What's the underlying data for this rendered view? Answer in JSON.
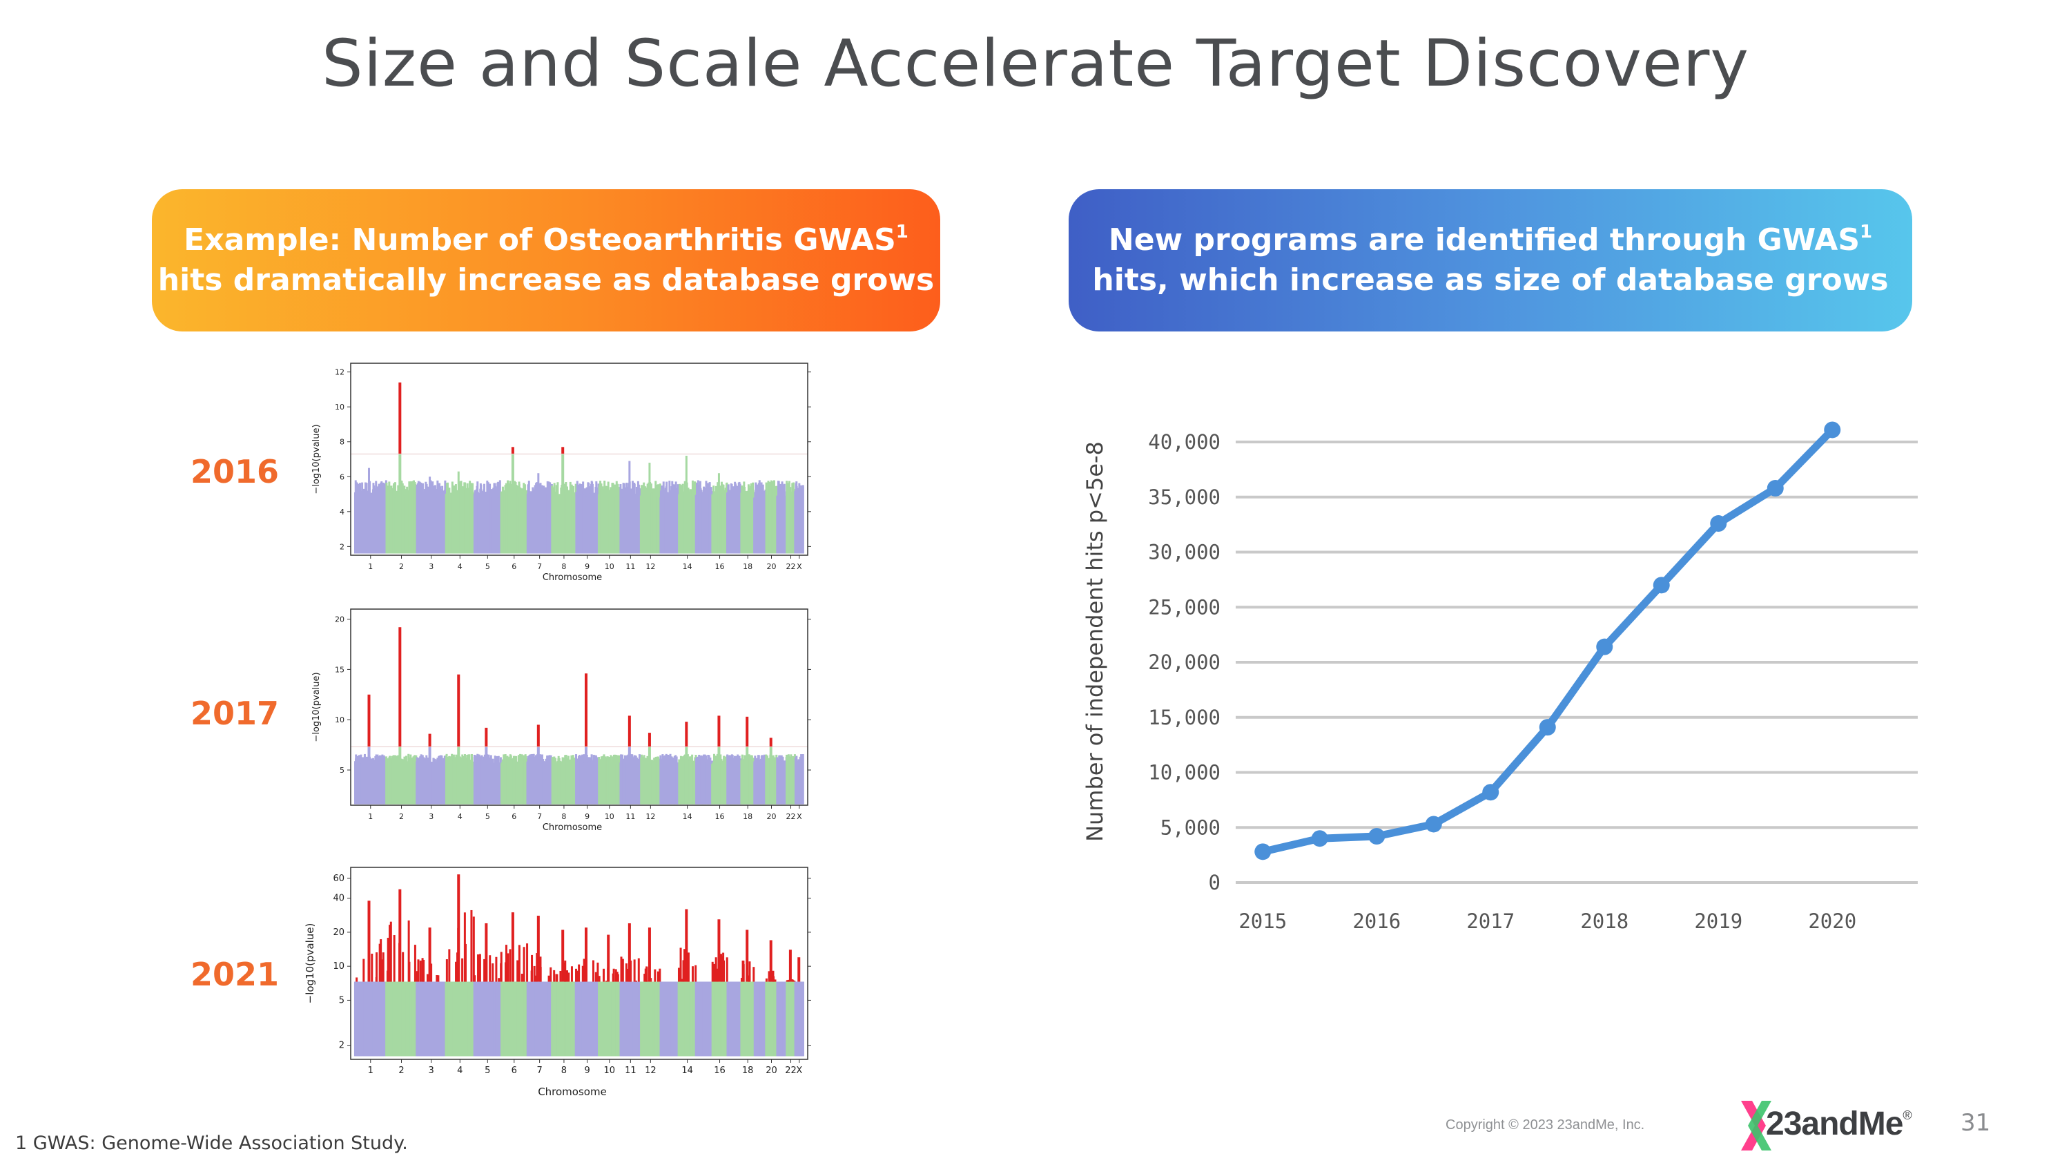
{
  "title": "Size and Scale Accelerate Target Discovery",
  "banners": {
    "left": {
      "line1": "Example: Number of Osteoarthritis GWAS",
      "sup1": "1",
      "line2": "hits dramatically increase as database grows"
    },
    "right": {
      "line1": "New programs are identified through GWAS",
      "sup1": "1",
      "line2": "hits, which increase as size of database grows"
    }
  },
  "chart_data": [
    {
      "type": "scatter",
      "label": "2016",
      "xlabel": "Chromosome",
      "ylabel": "−log10(pvalue)",
      "yticks": [
        2,
        4,
        6,
        8,
        10,
        12
      ],
      "ylim": [
        1.5,
        12.5
      ],
      "threshold": 7.3,
      "xticks": [
        "1",
        "2",
        "3",
        "4",
        "5",
        "6",
        "7",
        "8",
        "9",
        "10",
        "11",
        "12",
        "14",
        "16",
        "18",
        "20",
        "22",
        "X"
      ],
      "chromosomes": 23,
      "peaks": [
        {
          "chrom": 1,
          "value": 6.5
        },
        {
          "chrom": 2,
          "value": 11.4
        },
        {
          "chrom": 3,
          "value": 6.0
        },
        {
          "chrom": 4,
          "value": 6.3
        },
        {
          "chrom": 6,
          "value": 7.7
        },
        {
          "chrom": 7,
          "value": 6.2
        },
        {
          "chrom": 8,
          "value": 7.7
        },
        {
          "chrom": 11,
          "value": 6.9
        },
        {
          "chrom": 12,
          "value": 6.8
        },
        {
          "chrom": 14,
          "value": 7.2
        },
        {
          "chrom": 16,
          "value": 6.2
        },
        {
          "chrom": 19,
          "value": 5.8
        }
      ]
    },
    {
      "type": "scatter",
      "label": "2017",
      "xlabel": "Chromosome",
      "ylabel": "−log10(pvalue)",
      "yticks": [
        5,
        10,
        15,
        20
      ],
      "ylim": [
        1.5,
        21
      ],
      "threshold": 7.3,
      "xticks": [
        "1",
        "2",
        "3",
        "4",
        "5",
        "6",
        "7",
        "8",
        "9",
        "10",
        "11",
        "12",
        "14",
        "16",
        "18",
        "20",
        "22",
        "X"
      ],
      "chromosomes": 23,
      "peaks": [
        {
          "chrom": 1,
          "value": 12.5
        },
        {
          "chrom": 2,
          "value": 19.2
        },
        {
          "chrom": 3,
          "value": 8.6
        },
        {
          "chrom": 4,
          "value": 14.5
        },
        {
          "chrom": 5,
          "value": 9.2
        },
        {
          "chrom": 7,
          "value": 9.5
        },
        {
          "chrom": 9,
          "value": 14.6
        },
        {
          "chrom": 11,
          "value": 10.4
        },
        {
          "chrom": 12,
          "value": 8.7
        },
        {
          "chrom": 14,
          "value": 9.8
        },
        {
          "chrom": 16,
          "value": 10.4
        },
        {
          "chrom": 18,
          "value": 10.3
        },
        {
          "chrom": 20,
          "value": 8.2
        }
      ]
    },
    {
      "type": "scatter",
      "label": "2021",
      "xlabel": "Chromosome",
      "ylabel": "−log10(pvalue)",
      "yticks": [
        2,
        5,
        10,
        20,
        40,
        60
      ],
      "ylim": [
        1.5,
        75
      ],
      "threshold": 7.3,
      "xticks": [
        "1",
        "2",
        "3",
        "4",
        "5",
        "6",
        "7",
        "8",
        "9",
        "10",
        "11",
        "12",
        "14",
        "16",
        "18",
        "20",
        "22",
        "X"
      ],
      "chromosomes": 23,
      "peaks": [
        {
          "chrom": 1,
          "value": 38
        },
        {
          "chrom": 2,
          "value": 48
        },
        {
          "chrom": 3,
          "value": 22
        },
        {
          "chrom": 4,
          "value": 65
        },
        {
          "chrom": 5,
          "value": 24
        },
        {
          "chrom": 6,
          "value": 30
        },
        {
          "chrom": 7,
          "value": 28
        },
        {
          "chrom": 8,
          "value": 21
        },
        {
          "chrom": 9,
          "value": 22
        },
        {
          "chrom": 10,
          "value": 19
        },
        {
          "chrom": 11,
          "value": 24
        },
        {
          "chrom": 12,
          "value": 22
        },
        {
          "chrom": 14,
          "value": 32
        },
        {
          "chrom": 16,
          "value": 26
        },
        {
          "chrom": 18,
          "value": 21
        },
        {
          "chrom": 20,
          "value": 17
        },
        {
          "chrom": 22,
          "value": 14
        },
        {
          "chrom": 23,
          "value": 12
        }
      ]
    },
    {
      "type": "line",
      "x": [
        "2015",
        "2015.5",
        "2016",
        "2016.5",
        "2017",
        "2017.5",
        "2018",
        "2018.5",
        "2019",
        "2019.5",
        "2020",
        "2020.5"
      ],
      "values": [
        2800,
        4000,
        4200,
        5300,
        8200,
        14100,
        21400,
        27000,
        32600,
        35800,
        41100,
        null
      ],
      "xticks": [
        "2015",
        "2016",
        "2017",
        "2018",
        "2019",
        "2020"
      ],
      "yticks": [
        "0",
        "5,000",
        "10,000",
        "15,000",
        "20,000",
        "25,000",
        "30,000",
        "35,000",
        "40,000"
      ],
      "ylim": [
        0,
        40000
      ],
      "ylabel": "Number of independent hits p<5e-8",
      "xlabel": "",
      "grid": true,
      "color": "#4a90d9"
    }
  ],
  "footnote": "1 GWAS: Genome-Wide Association Study.",
  "copyright": "Copyright © 2023 23andMe, Inc.",
  "logo": {
    "text": "23andMe",
    "reg": "®"
  },
  "page_number": "31",
  "colors": {
    "purple": "#a8a6e0",
    "green": "#a6d9a2",
    "red": "#e02020",
    "orange_label": "#f06a2c"
  }
}
